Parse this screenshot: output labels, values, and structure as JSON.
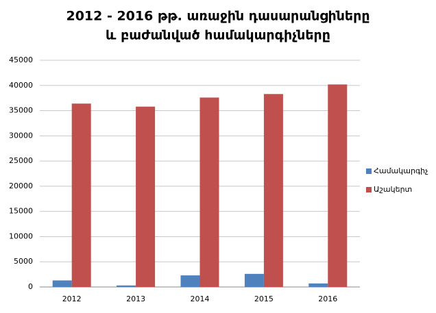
{
  "chart_data": {
    "type": "bar",
    "title": [
      "2012 - 2016 թթ. առաջին դասարանցիները",
      "և բաժանված համակարգիչները"
    ],
    "categories": [
      "2012",
      "2013",
      "2014",
      "2015",
      "2016"
    ],
    "series": [
      {
        "name": "Համակարգիչ",
        "color": "#4f81bd",
        "values": [
          1300,
          300,
          2300,
          2600,
          700
        ]
      },
      {
        "name": "Աշակերտ",
        "color": "#c0504d",
        "values": [
          36400,
          35800,
          37600,
          38300,
          40200
        ]
      }
    ],
    "ylim": [
      0,
      45000
    ],
    "yticks": [
      0,
      5000,
      10000,
      15000,
      20000,
      25000,
      30000,
      35000,
      40000,
      45000
    ],
    "grid": true,
    "legend": "right"
  }
}
